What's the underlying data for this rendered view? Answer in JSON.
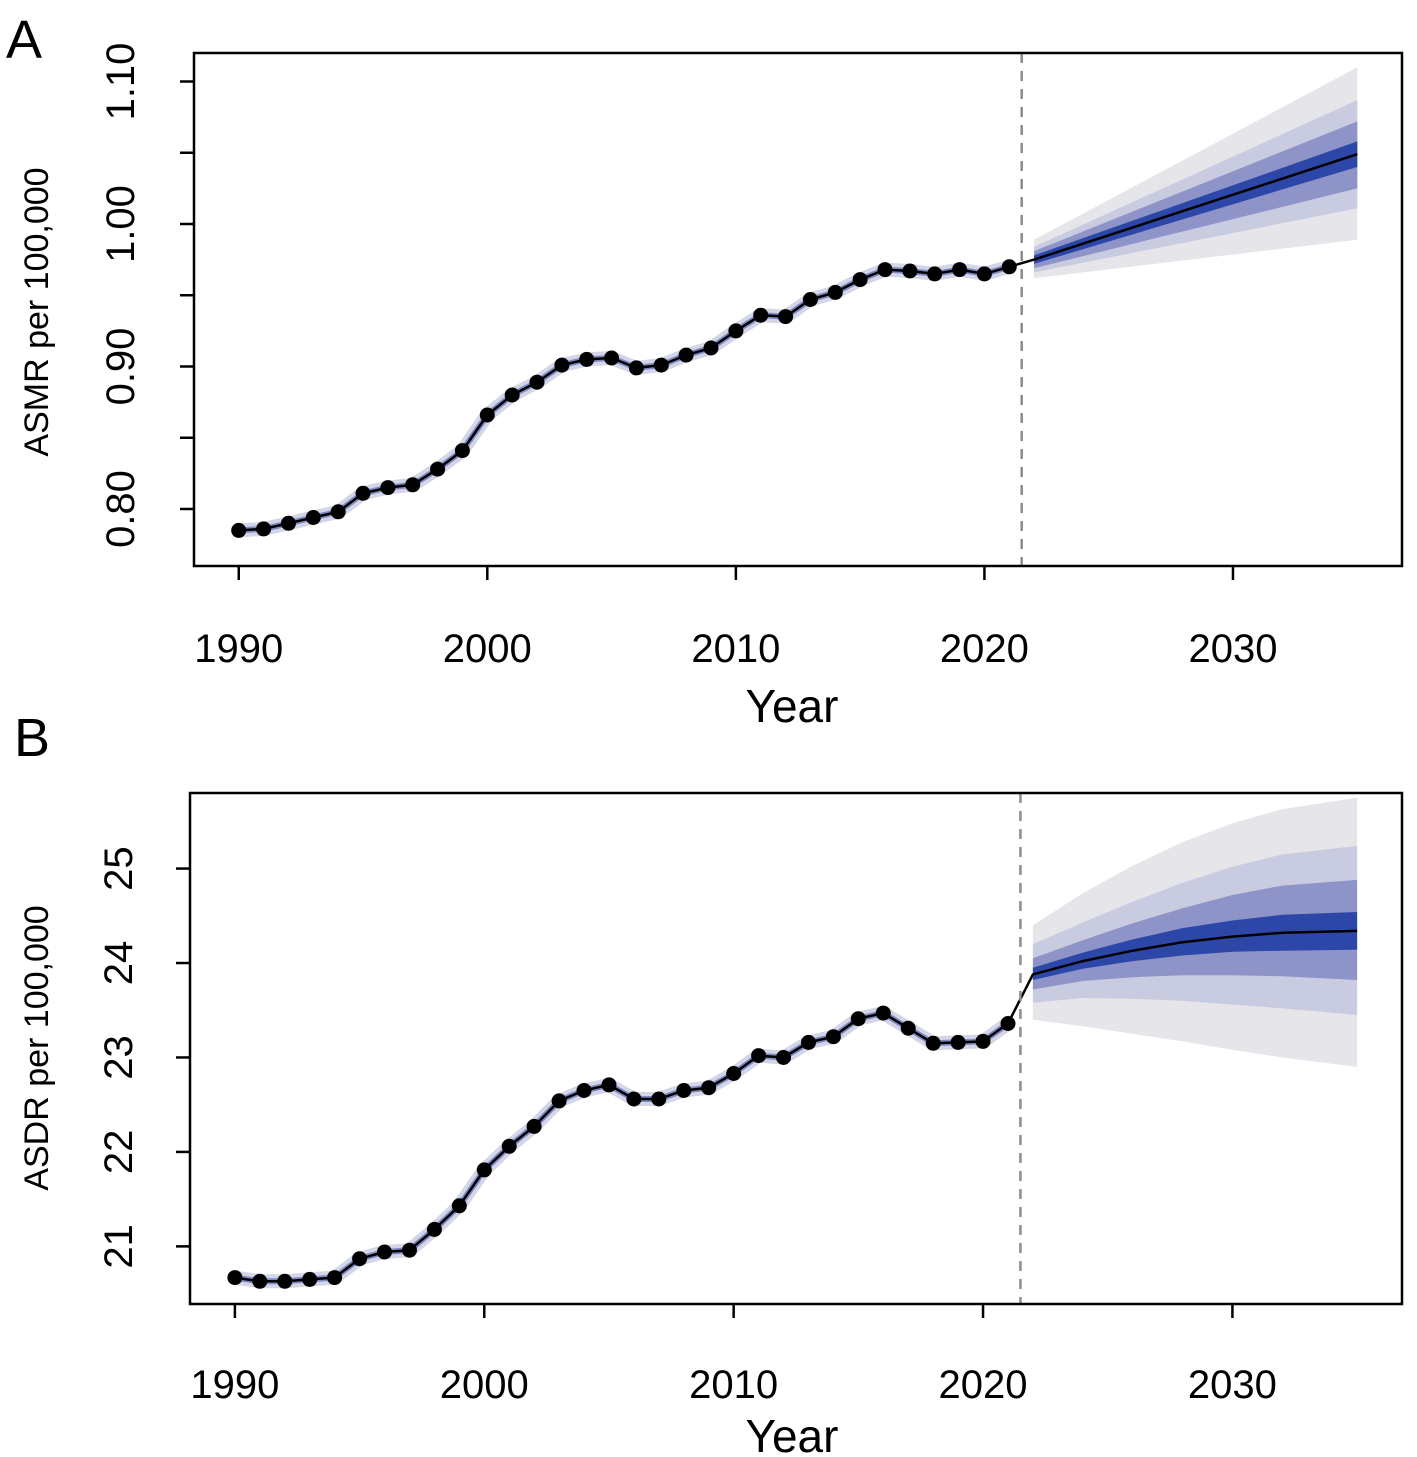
{
  "chart_data": [
    {
      "panel_label": "A",
      "type": "line",
      "title": "",
      "xlabel": "Year",
      "ylabel": "ASMR per 100,000",
      "xlim": [
        1988.2,
        2036.8
      ],
      "ylim": [
        0.76,
        1.12
      ],
      "x_ticks": [
        1990,
        2000,
        2010,
        2020,
        2030
      ],
      "x_tick_labels": [
        "1990",
        "2000",
        "2010",
        "2020",
        "2030"
      ],
      "y_ticks": [
        0.8,
        0.85,
        0.9,
        0.95,
        1.0,
        1.05,
        1.1
      ],
      "y_tick_labels": [
        "0.80",
        "",
        "0.90",
        "",
        "1.00",
        "",
        "1.10"
      ],
      "projection_start": 2021.5,
      "observed": {
        "x": [
          1990,
          1991,
          1992,
          1993,
          1994,
          1995,
          1996,
          1997,
          1998,
          1999,
          2000,
          2001,
          2002,
          2003,
          2004,
          2005,
          2006,
          2007,
          2008,
          2009,
          2010,
          2011,
          2012,
          2013,
          2014,
          2015,
          2016,
          2017,
          2018,
          2019,
          2020,
          2021
        ],
        "y": [
          0.785,
          0.786,
          0.79,
          0.794,
          0.798,
          0.811,
          0.815,
          0.817,
          0.828,
          0.841,
          0.866,
          0.88,
          0.889,
          0.901,
          0.905,
          0.906,
          0.899,
          0.901,
          0.908,
          0.913,
          0.925,
          0.936,
          0.935,
          0.947,
          0.952,
          0.961,
          0.968,
          0.967,
          0.965,
          0.968,
          0.965,
          0.97
        ]
      },
      "projection": {
        "x": [
          2022,
          2035
        ],
        "mean": [
          0.975,
          1.049
        ],
        "bands": [
          {
            "level": "outer",
            "lower": [
              0.962,
              0.989
            ],
            "upper": [
              0.989,
              1.11
            ],
            "color": "#e6e6ea"
          },
          {
            "level": "mid-outer",
            "lower": [
              0.966,
              1.011
            ],
            "upper": [
              0.984,
              1.087
            ],
            "color": "#c9cbe0"
          },
          {
            "level": "mid-inner",
            "lower": [
              0.969,
              1.025
            ],
            "upper": [
              0.981,
              1.072
            ],
            "color": "#8e94c8"
          },
          {
            "level": "inner",
            "lower": [
              0.972,
              1.04
            ],
            "upper": [
              0.978,
              1.058
            ],
            "color": "#2c47a8"
          }
        ]
      }
    },
    {
      "panel_label": "B",
      "type": "line",
      "title": "",
      "xlabel": "Year",
      "ylabel": "ASDR per 100,000",
      "xlim": [
        1988.2,
        2036.8
      ],
      "ylim": [
        20.39,
        25.8
      ],
      "x_ticks": [
        1990,
        2000,
        2010,
        2020,
        2030
      ],
      "x_tick_labels": [
        "1990",
        "2000",
        "2010",
        "2020",
        "2030"
      ],
      "y_ticks": [
        21,
        22,
        23,
        24,
        25
      ],
      "y_tick_labels": [
        "21",
        "22",
        "23",
        "24",
        "25"
      ],
      "projection_start": 2021.5,
      "observed": {
        "x": [
          1990,
          1991,
          1992,
          1993,
          1994,
          1995,
          1996,
          1997,
          1998,
          1999,
          2000,
          2001,
          2002,
          2003,
          2004,
          2005,
          2006,
          2007,
          2008,
          2009,
          2010,
          2011,
          2012,
          2013,
          2014,
          2015,
          2016,
          2017,
          2018,
          2019,
          2020,
          2021
        ],
        "y": [
          20.67,
          20.63,
          20.63,
          20.65,
          20.67,
          20.87,
          20.94,
          20.96,
          21.18,
          21.43,
          21.81,
          22.06,
          22.27,
          22.54,
          22.65,
          22.71,
          22.56,
          22.56,
          22.65,
          22.68,
          22.83,
          23.02,
          23.0,
          23.16,
          23.22,
          23.41,
          23.47,
          23.31,
          23.15,
          23.16,
          23.17,
          23.36
        ]
      },
      "projection": {
        "x": [
          2022,
          2024,
          2026,
          2028,
          2030,
          2032,
          2035
        ],
        "mean": [
          23.88,
          24.02,
          24.13,
          24.22,
          24.28,
          24.32,
          24.34
        ],
        "bands": [
          {
            "level": "outer",
            "lower": [
              23.4,
              23.33,
              23.25,
              23.17,
              23.08,
              23.0,
              22.9
            ],
            "upper": [
              24.4,
              24.74,
              25.03,
              25.28,
              25.48,
              25.63,
              25.75
            ],
            "color": "#e6e6ea"
          },
          {
            "level": "mid-outer",
            "lower": [
              23.58,
              23.63,
              23.62,
              23.6,
              23.56,
              23.52,
              23.45
            ],
            "upper": [
              24.2,
              24.43,
              24.65,
              24.85,
              25.02,
              25.15,
              25.24
            ],
            "color": "#c9cbe0"
          },
          {
            "level": "mid-inner",
            "lower": [
              23.72,
              23.81,
              23.85,
              23.87,
              23.87,
              23.86,
              23.82
            ],
            "upper": [
              24.05,
              24.24,
              24.42,
              24.58,
              24.72,
              24.82,
              24.88
            ],
            "color": "#8e94c8"
          },
          {
            "level": "inner",
            "lower": [
              23.82,
              23.94,
              24.02,
              24.08,
              24.12,
              24.13,
              24.14
            ],
            "upper": [
              23.95,
              24.11,
              24.25,
              24.37,
              24.45,
              24.51,
              24.54
            ],
            "color": "#2c47a8"
          }
        ]
      }
    }
  ]
}
